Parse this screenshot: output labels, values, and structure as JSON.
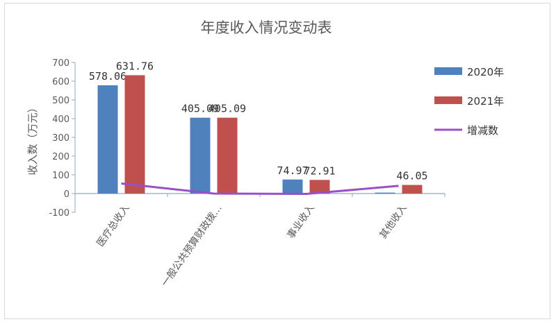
{
  "chart_data": {
    "type": "bar",
    "title": "年度收入情况变动表",
    "ylabel": "收入数（万元）",
    "xlabel": "",
    "ylim": [
      -100,
      700
    ],
    "yticks": [
      "-100",
      "0",
      "100",
      "200",
      "300",
      "400",
      "500",
      "600",
      "700"
    ],
    "categories": [
      "医疗总收入",
      "一般公共预算财政拨…",
      "事业收入",
      "其他收入"
    ],
    "series": [
      {
        "name": "2020年",
        "type": "bar",
        "color": "#4f81bd",
        "values": [
          578.06,
          405.09,
          74.97,
          5.0
        ],
        "labels": [
          "578.06",
          "405.09",
          "74.97",
          ""
        ]
      },
      {
        "name": "2021年",
        "type": "bar",
        "color": "#c0504d",
        "values": [
          631.76,
          405.09,
          72.91,
          46.05
        ],
        "labels": [
          "631.76",
          "405.09",
          "72.91",
          "46.05"
        ]
      },
      {
        "name": "增减数",
        "type": "line",
        "color": "#9a4fc8",
        "values": [
          53.7,
          0,
          -2.06,
          41.05
        ]
      }
    ],
    "legend": "right",
    "grid": false
  }
}
